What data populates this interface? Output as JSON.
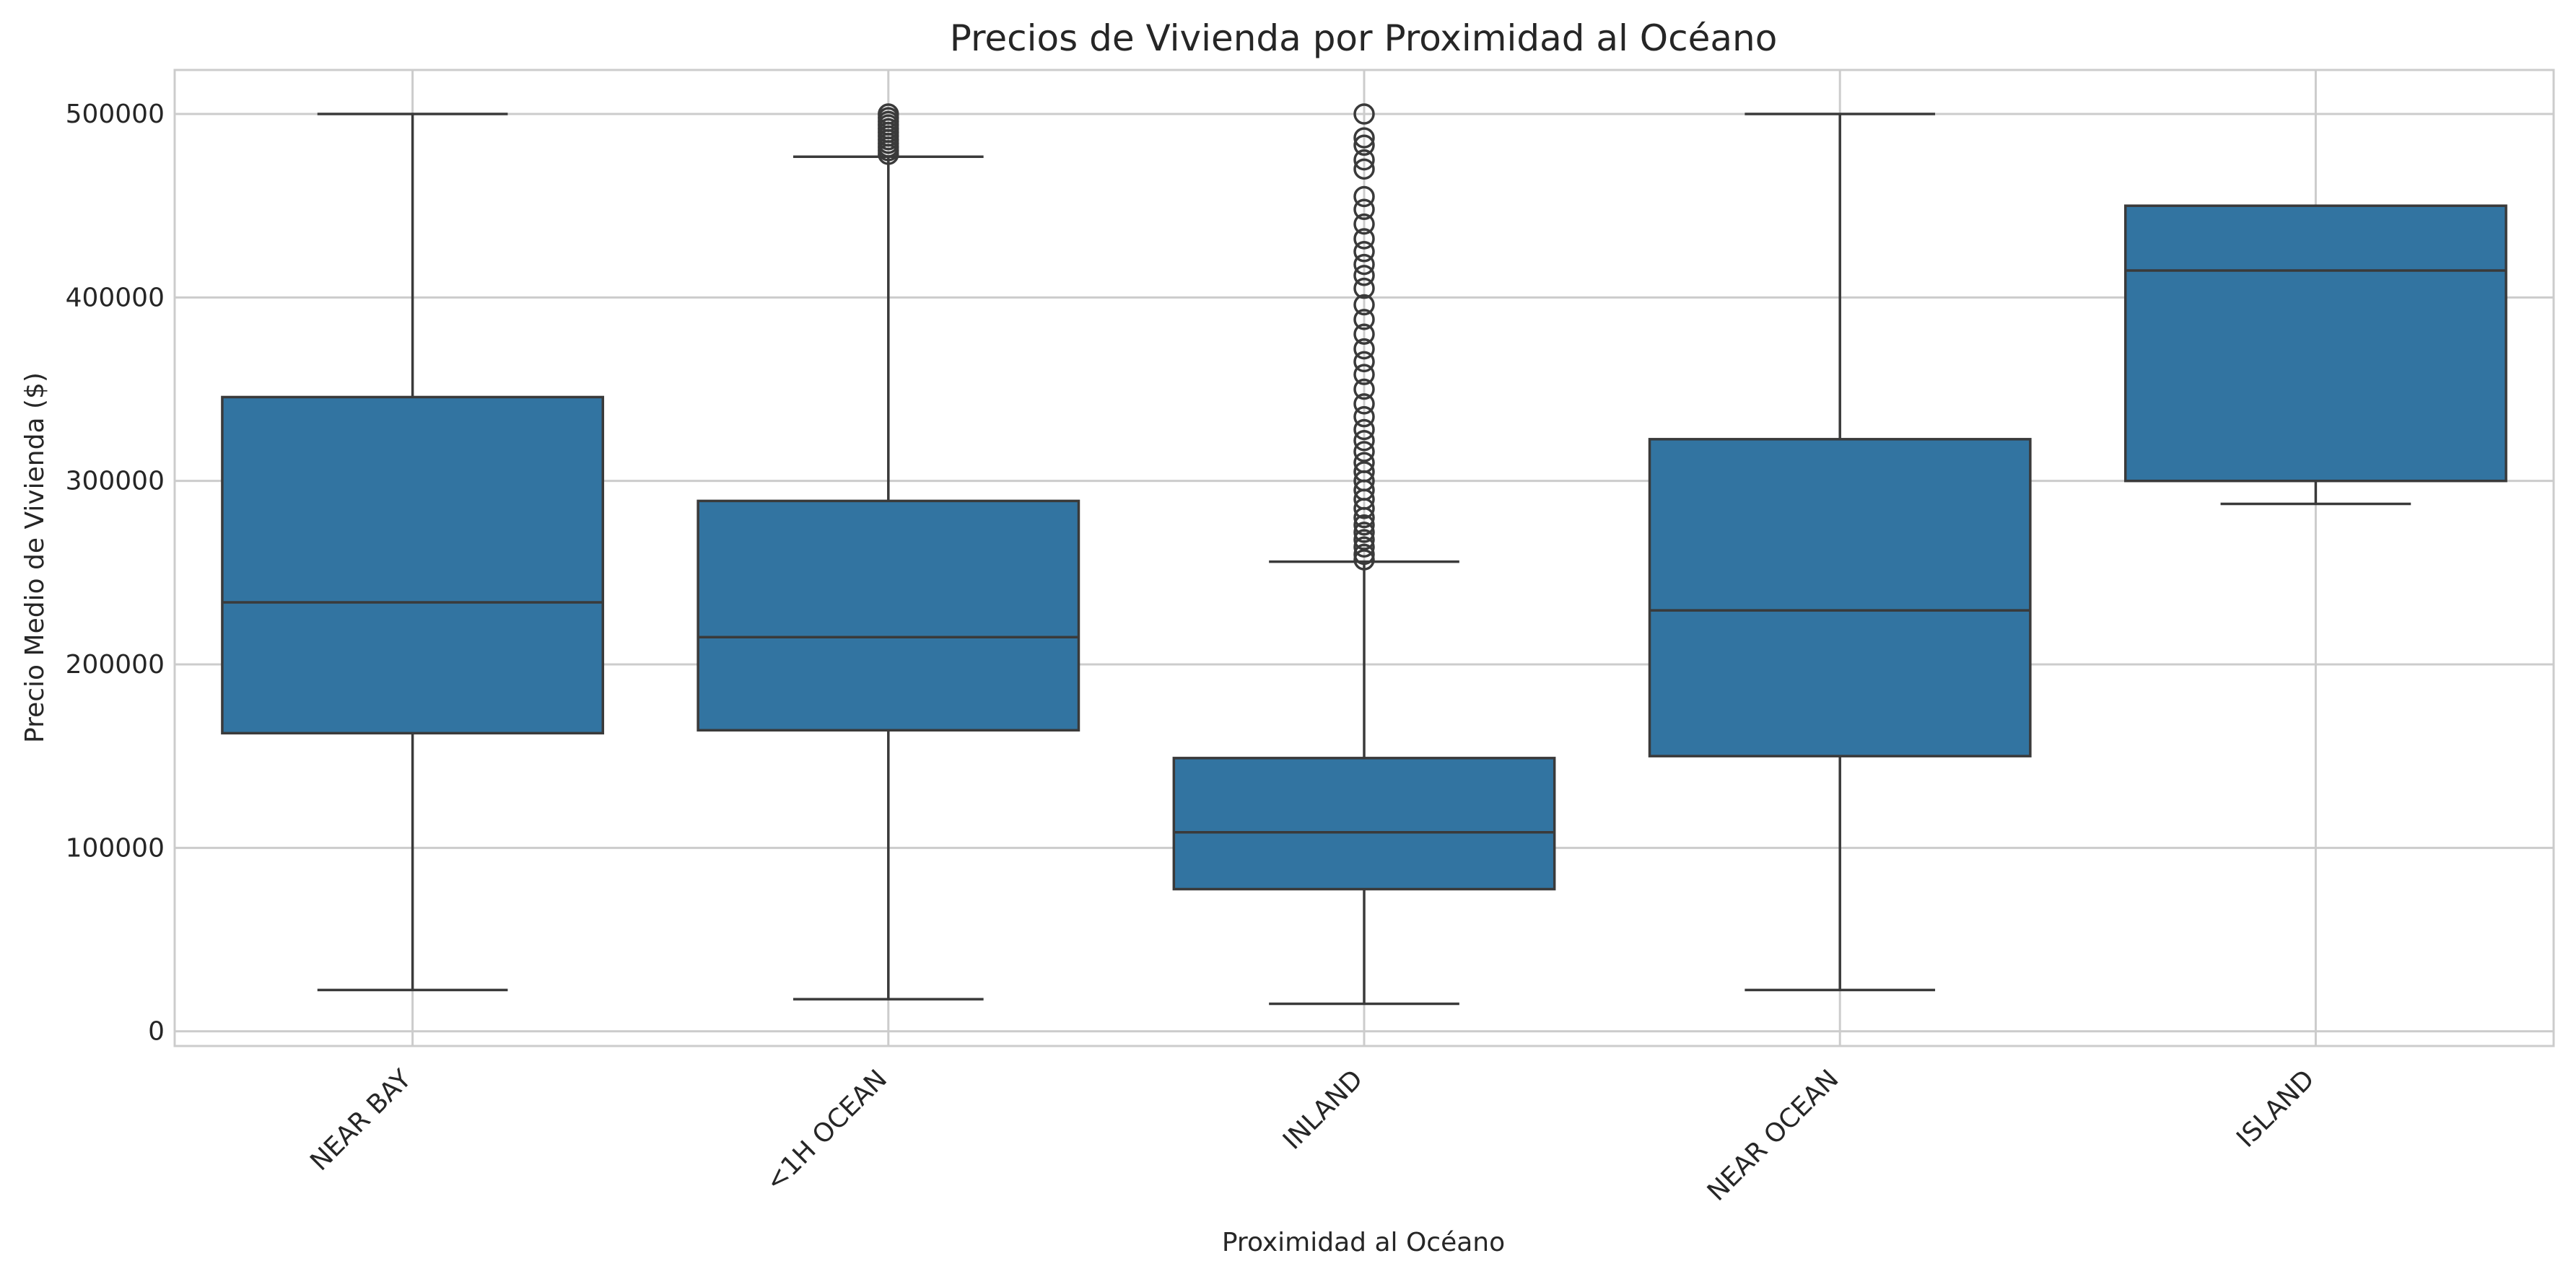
{
  "chart_data": {
    "type": "box",
    "title": "Precios de Vivienda por Proximidad al Océano",
    "xlabel": "Proximidad al Océano",
    "ylabel": "Precio Medio de Vivienda ($)",
    "ylim": [
      -8000,
      524000
    ],
    "yticks": [
      0,
      100000,
      200000,
      300000,
      400000,
      500000
    ],
    "grid": true,
    "box_color": "#3274a1",
    "line_color": "#3a3a3a",
    "categories": [
      "NEAR BAY",
      "<1H OCEAN",
      "INLAND",
      "NEAR OCEAN",
      "ISLAND"
    ],
    "boxes": [
      {
        "category": "NEAR BAY",
        "whislo": 22500,
        "q1": 162500,
        "median": 233800,
        "q3": 345700,
        "whishi": 500001,
        "fliers": []
      },
      {
        "category": "<1H OCEAN",
        "whislo": 17500,
        "q1": 164100,
        "median": 214850,
        "q3": 289100,
        "whishi": 476700,
        "fliers": [
          478000,
          480000,
          482000,
          484000,
          486000,
          488000,
          490000,
          492000,
          494000,
          496000,
          498000,
          500001
        ]
      },
      {
        "category": "INLAND",
        "whislo": 14999,
        "q1": 77500,
        "median": 108500,
        "q3": 148950,
        "whishi": 256000,
        "fliers": [
          257000,
          260000,
          264000,
          268000,
          272000,
          276000,
          280000,
          285000,
          290000,
          295000,
          300000,
          305000,
          310000,
          316000,
          322000,
          328000,
          335000,
          342000,
          350000,
          358000,
          365000,
          372000,
          380000,
          388000,
          396000,
          405000,
          412000,
          418000,
          425000,
          432000,
          440000,
          448000,
          455000,
          470000,
          475000,
          483000,
          487000,
          500001
        ]
      },
      {
        "category": "NEAR OCEAN",
        "whislo": 22500,
        "q1": 150000,
        "median": 229450,
        "q3": 322750,
        "whishi": 500001,
        "fliers": []
      },
      {
        "category": "ISLAND",
        "whislo": 287500,
        "q1": 300000,
        "median": 414700,
        "q3": 450000,
        "whishi": 450000,
        "fliers": []
      }
    ]
  }
}
